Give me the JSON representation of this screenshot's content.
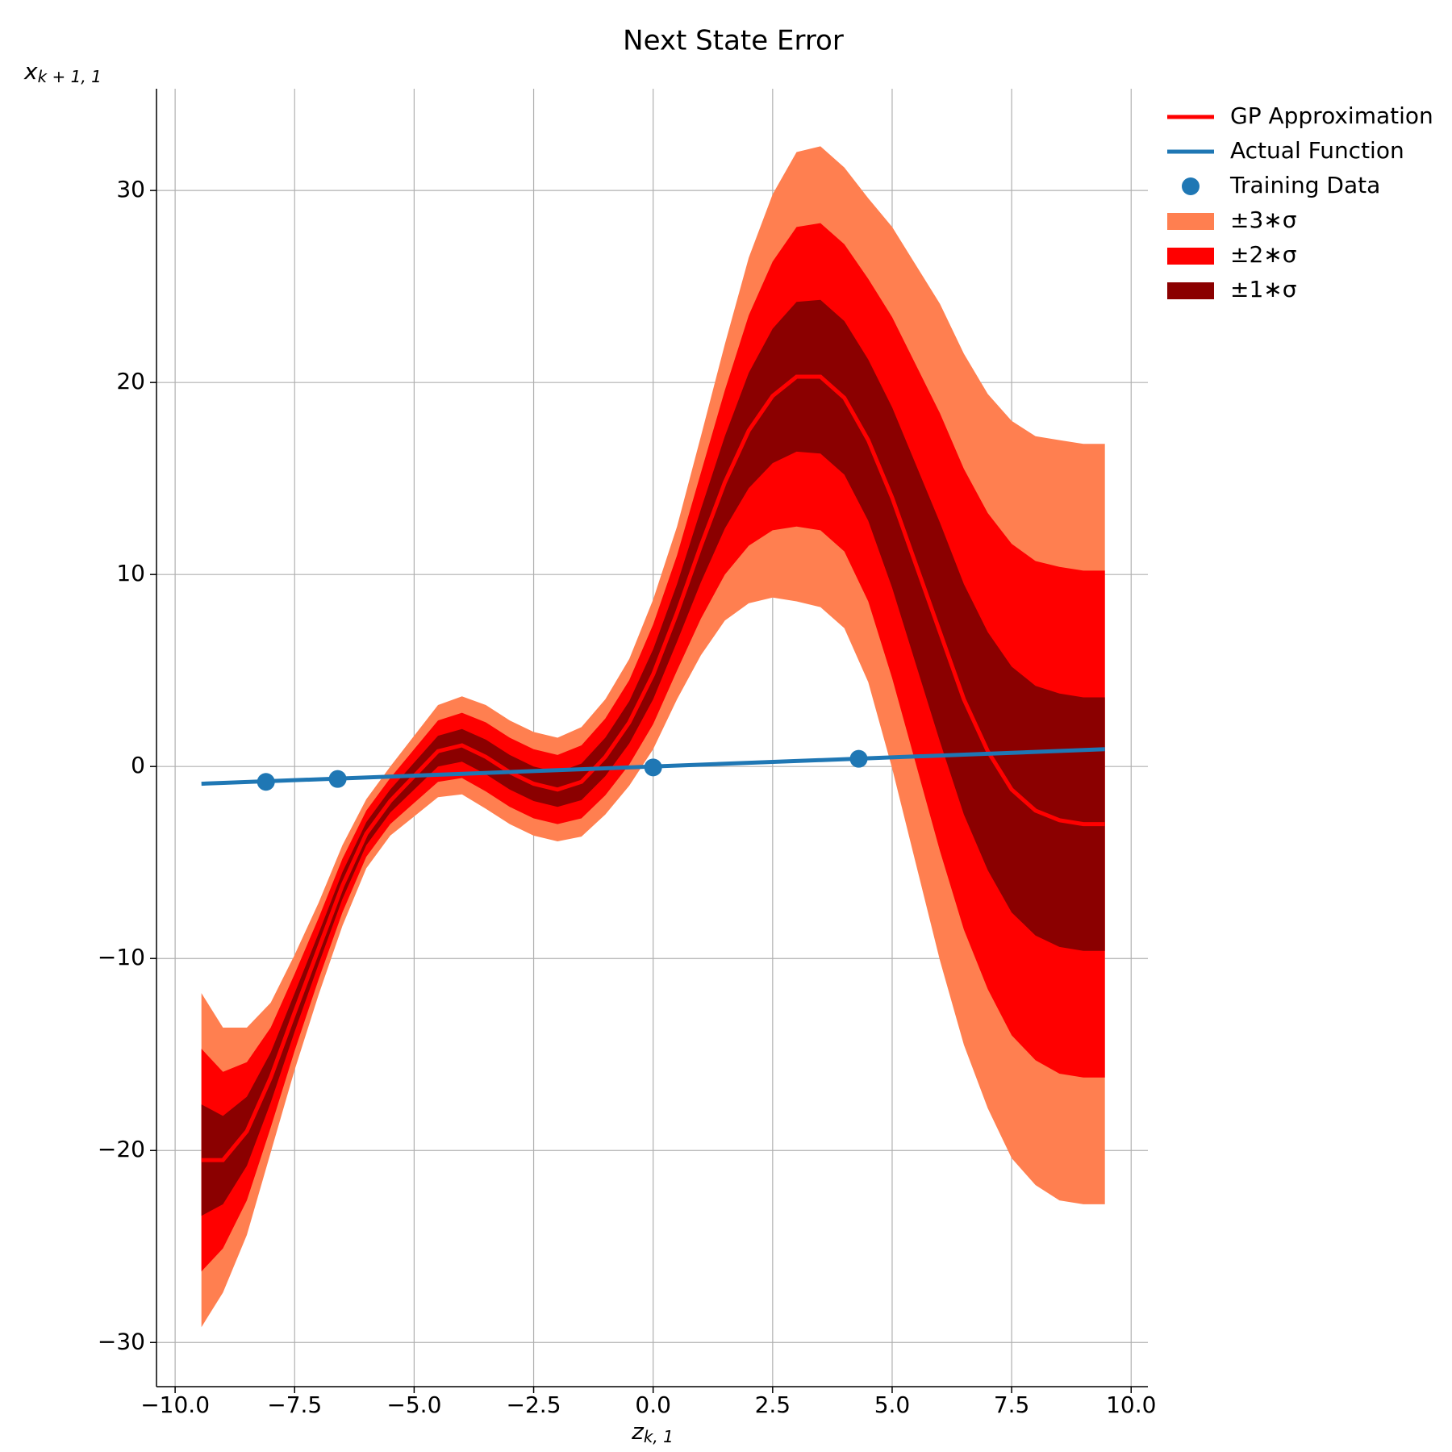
{
  "chart_data": {
    "type": "line",
    "title": "Next State Error",
    "xlabel": [
      "z",
      "k, 1"
    ],
    "ylabel": [
      "x",
      "k + 1, 1"
    ],
    "xlim": [
      -10.39,
      10.35
    ],
    "ylim": [
      -32.3,
      35.3
    ],
    "xticks": [
      {
        "value": -10,
        "label": "−10.0"
      },
      {
        "value": -7.5,
        "label": "−7.5"
      },
      {
        "value": -5,
        "label": "−5.0"
      },
      {
        "value": -2.5,
        "label": "−2.5"
      },
      {
        "value": 0,
        "label": "0.0"
      },
      2.5,
      {
        "value": 5,
        "label": "5.0"
      },
      7.5,
      {
        "value": 10,
        "label": "10.0"
      }
    ],
    "yticks": [
      {
        "value": -30,
        "label": "−30"
      },
      {
        "value": -20,
        "label": "−20"
      },
      {
        "value": -10,
        "label": "−10"
      },
      0,
      10,
      20,
      30
    ],
    "grid": true,
    "legend": "outside right",
    "x": [
      -9.45,
      -9,
      -8.5,
      -8,
      -7.5,
      -7,
      -6.5,
      -6,
      -5.5,
      -5,
      -4.5,
      -4,
      -3.5,
      -3,
      -2.5,
      -2,
      -1.5,
      -1,
      -0.5,
      0,
      0.5,
      1,
      1.5,
      2,
      2.5,
      3,
      3.5,
      4,
      4.5,
      5,
      5.5,
      6,
      6.5,
      7,
      7.5,
      8,
      8.5,
      9,
      9.45
    ],
    "series": [
      {
        "name": "GP Approximation",
        "kind": "line",
        "color": "#ff0000",
        "values": [
          -20.5,
          -20.5,
          -19,
          -16.2,
          -12.8,
          -9.5,
          -6.2,
          -3.5,
          -1.8,
          -0.5,
          0.8,
          1.1,
          0.5,
          -0.3,
          -0.9,
          -1.2,
          -0.8,
          0.5,
          2.3,
          4.8,
          8,
          11.5,
          14.8,
          17.5,
          19.3,
          20.3,
          20.3,
          19.2,
          17,
          14,
          10.5,
          7,
          3.5,
          0.8,
          -1.2,
          -2.3,
          -2.8,
          -3,
          -3
        ]
      },
      {
        "name": "Actual Function",
        "kind": "line",
        "color": "#1f77b4",
        "x": [
          -9.45,
          9.45
        ],
        "values": [
          -0.9,
          0.9
        ]
      },
      {
        "name": "Training Data",
        "kind": "scatter",
        "color": "#1f77b4",
        "x": [
          -8.1,
          -6.6,
          0,
          4.3
        ],
        "values": [
          -0.8,
          -0.65,
          -0.05,
          0.4
        ]
      },
      {
        "name": "±3∗σ",
        "kind": "band",
        "color": "#ff7f50",
        "lower": [
          -29.2,
          -27.4,
          -24.4,
          -20.1,
          -15.8,
          -11.9,
          -8.3,
          -5.3,
          -3.6,
          -2.6,
          -1.6,
          -1.45,
          -2.2,
          -3.0,
          -3.6,
          -3.9,
          -3.65,
          -2.5,
          -1.0,
          0.9,
          3.5,
          5.8,
          7.6,
          8.5,
          8.8,
          8.6,
          8.3,
          7.2,
          4.4,
          -0.1,
          -5.1,
          -10.1,
          -14.5,
          -17.8,
          -20.4,
          -21.8,
          -22.6,
          -22.8,
          -22.8
        ],
        "upper": [
          -11.8,
          -13.6,
          -13.6,
          -12.3,
          -9.8,
          -7.1,
          -4.1,
          -1.7,
          0,
          1.6,
          3.2,
          3.65,
          3.2,
          2.4,
          1.8,
          1.5,
          2.05,
          3.5,
          5.6,
          8.7,
          12.5,
          17.2,
          22,
          26.5,
          29.8,
          32,
          32.3,
          31.2,
          29.6,
          28.1,
          26.1,
          24.1,
          21.5,
          19.4,
          18,
          17.2,
          17,
          16.8,
          16.8
        ]
      },
      {
        "name": "±2∗σ",
        "kind": "band",
        "color": "#ff0000",
        "lower": [
          -26.3,
          -25.1,
          -22.6,
          -18.8,
          -14.8,
          -11.1,
          -7.6,
          -4.7,
          -3.0,
          -1.9,
          -0.8,
          -0.6,
          -1.3,
          -2.1,
          -2.7,
          -3.0,
          -2.7,
          -1.5,
          0.1,
          2.2,
          5,
          7.7,
          10,
          11.5,
          12.3,
          12.5,
          12.3,
          11.2,
          8.6,
          4.6,
          0.1,
          -4.4,
          -8.5,
          -11.6,
          -14,
          -15.3,
          -16,
          -16.2,
          -16.2
        ],
        "upper": [
          -14.7,
          -15.9,
          -15.4,
          -13.6,
          -10.8,
          -7.9,
          -4.8,
          -2.3,
          -0.6,
          0.9,
          2.4,
          2.8,
          2.3,
          1.5,
          0.9,
          0.6,
          1.1,
          2.5,
          4.5,
          7.4,
          11,
          15.3,
          19.6,
          23.5,
          26.3,
          28.1,
          28.3,
          27.2,
          25.4,
          23.4,
          20.9,
          18.4,
          15.5,
          13.2,
          11.6,
          10.7,
          10.4,
          10.2,
          10.2
        ]
      },
      {
        "name": "±1∗σ",
        "kind": "band",
        "color": "#8b0000",
        "lower": [
          -23.4,
          -22.8,
          -20.8,
          -17.5,
          -13.8,
          -10.3,
          -6.9,
          -4.1,
          -2.4,
          -1.2,
          0,
          0.25,
          -0.4,
          -1.2,
          -1.8,
          -2.1,
          -1.75,
          -0.5,
          1.2,
          3.5,
          6.5,
          9.6,
          12.4,
          14.5,
          15.8,
          16.4,
          16.3,
          15.2,
          12.8,
          9.3,
          5.3,
          1.3,
          -2.5,
          -5.4,
          -7.6,
          -8.8,
          -9.4,
          -9.6,
          -9.6
        ],
        "upper": [
          -17.6,
          -18.2,
          -17.2,
          -14.9,
          -11.8,
          -8.7,
          -5.5,
          -2.9,
          -1.2,
          0.2,
          1.6,
          1.95,
          1.4,
          0.6,
          0,
          -0.3,
          0.15,
          1.5,
          3.4,
          6.1,
          9.5,
          13.4,
          17.2,
          20.5,
          22.8,
          24.2,
          24.3,
          23.2,
          21.2,
          18.7,
          15.7,
          12.7,
          9.5,
          7,
          5.2,
          4.2,
          3.8,
          3.6,
          3.6
        ]
      }
    ]
  }
}
